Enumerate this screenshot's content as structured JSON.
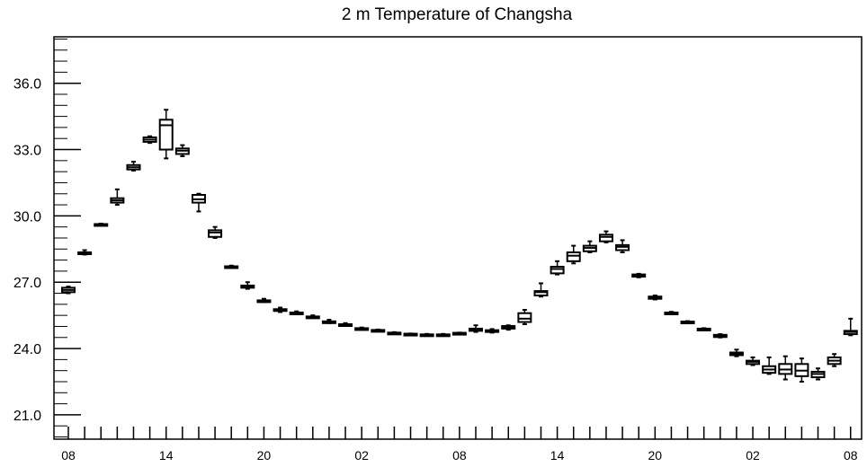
{
  "chart_data": {
    "type": "boxplot",
    "title": "2 m Temperature of Changsha",
    "xlabel": "",
    "ylabel": "",
    "ylim": [
      19.9,
      38.1
    ],
    "y_ticks": [
      21,
      24,
      27,
      30,
      33,
      36
    ],
    "y_tick_labels": [
      "21.0",
      "24.0",
      "27.0",
      "30.0",
      "33.0",
      "36.0"
    ],
    "x_tick_labels": [
      {
        "label": "08",
        "hour_offset": 0
      },
      {
        "label": "14",
        "hour_offset": 6
      },
      {
        "label": "20",
        "hour_offset": 12
      },
      {
        "label": "02",
        "hour_offset": 18
      },
      {
        "label": "08",
        "hour_offset": 24
      },
      {
        "label": "14",
        "hour_offset": 30
      },
      {
        "label": "20",
        "hour_offset": 36
      },
      {
        "label": "02",
        "hour_offset": 42
      },
      {
        "label": "08",
        "hour_offset": 48
      }
    ],
    "grid": false,
    "legend": "none",
    "box_color": "#000000",
    "boxes": [
      {
        "hour_offset": 0,
        "min": 26.5,
        "q1": 26.55,
        "median": 26.65,
        "q3": 26.75,
        "max": 26.8
      },
      {
        "hour_offset": 1,
        "min": 28.25,
        "q1": 28.3,
        "median": 28.32,
        "q3": 28.35,
        "max": 28.45
      },
      {
        "hour_offset": 2,
        "min": 29.55,
        "q1": 29.57,
        "median": 29.6,
        "q3": 29.63,
        "max": 29.65
      },
      {
        "hour_offset": 3,
        "min": 30.5,
        "q1": 30.6,
        "median": 30.7,
        "q3": 30.8,
        "max": 31.2
      },
      {
        "hour_offset": 4,
        "min": 32.05,
        "q1": 32.1,
        "median": 32.2,
        "q3": 32.3,
        "max": 32.45
      },
      {
        "hour_offset": 5,
        "min": 33.3,
        "q1": 33.35,
        "median": 33.45,
        "q3": 33.55,
        "max": 33.6
      },
      {
        "hour_offset": 6,
        "min": 32.6,
        "q1": 33.0,
        "median": 34.1,
        "q3": 34.35,
        "max": 34.8
      },
      {
        "hour_offset": 7,
        "min": 32.7,
        "q1": 32.8,
        "median": 32.95,
        "q3": 33.05,
        "max": 33.2
      },
      {
        "hour_offset": 8,
        "min": 30.2,
        "q1": 30.6,
        "median": 30.75,
        "q3": 30.95,
        "max": 31.0
      },
      {
        "hour_offset": 9,
        "min": 29.0,
        "q1": 29.05,
        "median": 29.25,
        "q3": 29.35,
        "max": 29.5
      },
      {
        "hour_offset": 10,
        "min": 27.65,
        "q1": 27.68,
        "median": 27.7,
        "q3": 27.72,
        "max": 27.75
      },
      {
        "hour_offset": 11,
        "min": 26.7,
        "q1": 26.75,
        "median": 26.8,
        "q3": 26.85,
        "max": 27.0
      },
      {
        "hour_offset": 12,
        "min": 26.1,
        "q1": 26.13,
        "median": 26.15,
        "q3": 26.18,
        "max": 26.25
      },
      {
        "hour_offset": 13,
        "min": 25.65,
        "q1": 25.7,
        "median": 25.75,
        "q3": 25.78,
        "max": 25.85
      },
      {
        "hour_offset": 14,
        "min": 25.55,
        "q1": 25.58,
        "median": 25.6,
        "q3": 25.63,
        "max": 25.68
      },
      {
        "hour_offset": 15,
        "min": 25.38,
        "q1": 25.4,
        "median": 25.43,
        "q3": 25.45,
        "max": 25.5
      },
      {
        "hour_offset": 16,
        "min": 25.15,
        "q1": 25.18,
        "median": 25.2,
        "q3": 25.23,
        "max": 25.3
      },
      {
        "hour_offset": 17,
        "min": 25.02,
        "q1": 25.05,
        "median": 25.07,
        "q3": 25.1,
        "max": 25.15
      },
      {
        "hour_offset": 18,
        "min": 24.85,
        "q1": 24.87,
        "median": 24.9,
        "q3": 24.92,
        "max": 24.95
      },
      {
        "hour_offset": 19,
        "min": 24.78,
        "q1": 24.8,
        "median": 24.82,
        "q3": 24.84,
        "max": 24.86
      },
      {
        "hour_offset": 20,
        "min": 24.68,
        "q1": 24.7,
        "median": 24.71,
        "q3": 24.72,
        "max": 24.74
      },
      {
        "hour_offset": 21,
        "min": 24.64,
        "q1": 24.65,
        "median": 24.66,
        "q3": 24.67,
        "max": 24.68
      },
      {
        "hour_offset": 22,
        "min": 24.6,
        "q1": 24.62,
        "median": 24.63,
        "q3": 24.64,
        "max": 24.66
      },
      {
        "hour_offset": 23,
        "min": 24.6,
        "q1": 24.62,
        "median": 24.63,
        "q3": 24.64,
        "max": 24.66
      },
      {
        "hour_offset": 24,
        "min": 24.66,
        "q1": 24.68,
        "median": 24.7,
        "q3": 24.71,
        "max": 24.72
      },
      {
        "hour_offset": 25,
        "min": 24.75,
        "q1": 24.8,
        "median": 24.85,
        "q3": 24.9,
        "max": 25.05
      },
      {
        "hour_offset": 26,
        "min": 24.72,
        "q1": 24.75,
        "median": 24.8,
        "q3": 24.83,
        "max": 24.88
      },
      {
        "hour_offset": 27,
        "min": 24.85,
        "q1": 24.9,
        "median": 24.95,
        "q3": 25.02,
        "max": 25.05
      },
      {
        "hour_offset": 28,
        "min": 25.1,
        "q1": 25.2,
        "median": 25.35,
        "q3": 25.6,
        "max": 25.75
      },
      {
        "hour_offset": 29,
        "min": 26.35,
        "q1": 26.4,
        "median": 26.55,
        "q3": 26.6,
        "max": 26.95
      },
      {
        "hour_offset": 30,
        "min": 27.35,
        "q1": 27.4,
        "median": 27.6,
        "q3": 27.7,
        "max": 27.95
      },
      {
        "hour_offset": 31,
        "min": 27.85,
        "q1": 27.95,
        "median": 28.2,
        "q3": 28.35,
        "max": 28.65
      },
      {
        "hour_offset": 32,
        "min": 28.35,
        "q1": 28.4,
        "median": 28.55,
        "q3": 28.65,
        "max": 28.85
      },
      {
        "hour_offset": 33,
        "min": 28.8,
        "q1": 28.85,
        "median": 29.05,
        "q3": 29.15,
        "max": 29.3
      },
      {
        "hour_offset": 34,
        "min": 28.35,
        "q1": 28.45,
        "median": 28.6,
        "q3": 28.68,
        "max": 28.9
      },
      {
        "hour_offset": 35,
        "min": 27.22,
        "q1": 27.25,
        "median": 27.3,
        "q3": 27.35,
        "max": 27.38
      },
      {
        "hour_offset": 36,
        "min": 26.22,
        "q1": 26.25,
        "median": 26.3,
        "q3": 26.35,
        "max": 26.4
      },
      {
        "hour_offset": 37,
        "min": 25.56,
        "q1": 25.58,
        "median": 25.6,
        "q3": 25.63,
        "max": 25.66
      },
      {
        "hour_offset": 38,
        "min": 25.15,
        "q1": 25.17,
        "median": 25.2,
        "q3": 25.22,
        "max": 25.24
      },
      {
        "hour_offset": 39,
        "min": 24.84,
        "q1": 24.86,
        "median": 24.88,
        "q3": 24.9,
        "max": 24.92
      },
      {
        "hour_offset": 40,
        "min": 24.5,
        "q1": 24.52,
        "median": 24.58,
        "q3": 24.62,
        "max": 24.65
      },
      {
        "hour_offset": 41,
        "min": 23.65,
        "q1": 23.7,
        "median": 23.75,
        "q3": 23.82,
        "max": 23.95
      },
      {
        "hour_offset": 42,
        "min": 23.25,
        "q1": 23.3,
        "median": 23.4,
        "q3": 23.45,
        "max": 23.6
      },
      {
        "hour_offset": 43,
        "min": 22.85,
        "q1": 22.9,
        "median": 23.05,
        "q3": 23.2,
        "max": 23.6
      },
      {
        "hour_offset": 44,
        "min": 22.6,
        "q1": 22.85,
        "median": 23.05,
        "q3": 23.3,
        "max": 23.65
      },
      {
        "hour_offset": 45,
        "min": 22.5,
        "q1": 22.75,
        "median": 23.0,
        "q3": 23.3,
        "max": 23.55
      },
      {
        "hour_offset": 46,
        "min": 22.6,
        "q1": 22.7,
        "median": 22.85,
        "q3": 22.95,
        "max": 23.1
      },
      {
        "hour_offset": 47,
        "min": 23.2,
        "q1": 23.3,
        "median": 23.45,
        "q3": 23.6,
        "max": 23.75
      },
      {
        "hour_offset": 48,
        "min": 24.6,
        "q1": 24.65,
        "median": 24.75,
        "q3": 24.8,
        "max": 25.35
      }
    ]
  }
}
